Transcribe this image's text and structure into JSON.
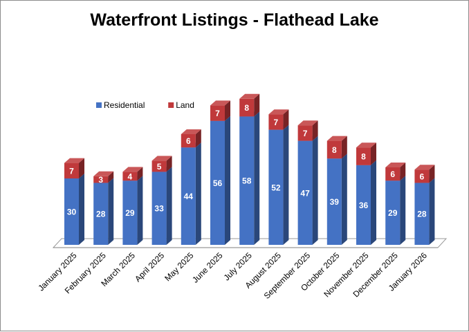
{
  "chart_data": {
    "type": "bar",
    "stacked": true,
    "style_3d": true,
    "title": "Waterfront Listings - Flathead Lake",
    "categories": [
      "January 2025",
      "February 2025",
      "March 2025",
      "April 2025",
      "May 2025",
      "June 2025",
      "July 2025",
      "August 2025",
      "September 2025",
      "October 2025",
      "November 2025",
      "December 2025",
      "January 2026"
    ],
    "series": [
      {
        "name": "Residential",
        "color": "#4472C4",
        "values": [
          30,
          28,
          29,
          33,
          44,
          56,
          58,
          52,
          47,
          39,
          36,
          29,
          28
        ]
      },
      {
        "name": "Land",
        "color": "#C0393B",
        "values": [
          7,
          3,
          4,
          5,
          6,
          7,
          8,
          7,
          7,
          8,
          8,
          6,
          6
        ]
      }
    ],
    "ylim": [
      0,
      70
    ],
    "grid": false,
    "legend_position": "top-left",
    "data_labels": true
  }
}
